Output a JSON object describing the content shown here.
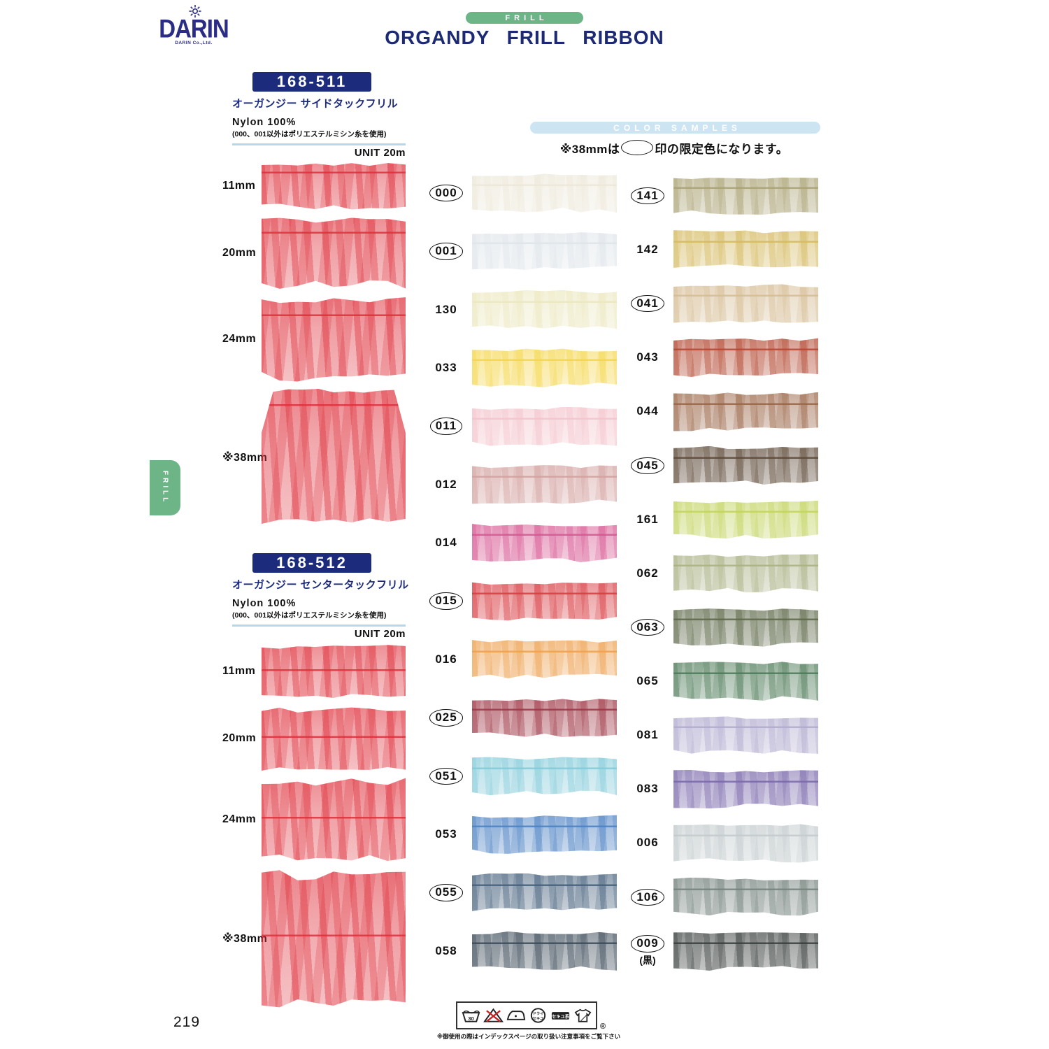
{
  "brand": {
    "name": "DARIN",
    "tagline": "DARIN Co.,Ltd."
  },
  "header": {
    "category_tab": "FRILL",
    "title": "ORGANDY FRILL RIBBON"
  },
  "side_tab_label": "FRILL",
  "products": [
    {
      "code": "168-511",
      "name": "オーガンジー サイドタックフリル",
      "material": "Nylon 100%",
      "material_note": "(000、001以外はポリエステルミシン糸を使用)",
      "unit": "UNIT 20m",
      "sizes": [
        "11mm",
        "20mm",
        "24mm",
        "※38mm"
      ],
      "sample_color": "#de2f3a"
    },
    {
      "code": "168-512",
      "name": "オーガンジー センタータックフリル",
      "material": "Nylon 100%",
      "material_note": "(000、001以外はポリエステルミシン糸を使用)",
      "unit": "UNIT 20m",
      "sizes": [
        "11mm",
        "20mm",
        "24mm",
        "※38mm"
      ],
      "sample_color": "#de2f3a"
    }
  ],
  "color_samples": {
    "heading": "COLOR  SAMPLES",
    "note_prefix": "※38mmは",
    "note_suffix": "印の限定色になります。",
    "columns": [
      {
        "rows": [
          {
            "code": "000",
            "circled": true,
            "color": "#ece7d8"
          },
          {
            "code": "001",
            "circled": true,
            "color": "#dee4e9"
          },
          {
            "code": "130",
            "circled": false,
            "color": "#ebe7bd"
          },
          {
            "code": "033",
            "circled": false,
            "color": "#f4d64a"
          },
          {
            "code": "011",
            "circled": true,
            "color": "#f3c3cb"
          },
          {
            "code": "012",
            "circled": false,
            "color": "#d2a09e"
          },
          {
            "code": "014",
            "circled": false,
            "color": "#d75490"
          },
          {
            "code": "015",
            "circled": true,
            "color": "#d83a40"
          },
          {
            "code": "016",
            "circled": false,
            "color": "#eda04e"
          },
          {
            "code": "025",
            "circled": true,
            "color": "#9d3443"
          },
          {
            "code": "051",
            "circled": true,
            "color": "#82cad9"
          },
          {
            "code": "053",
            "circled": false,
            "color": "#4a80c2"
          },
          {
            "code": "055",
            "circled": true,
            "color": "#45607c"
          },
          {
            "code": "058",
            "circled": false,
            "color": "#3b4a58"
          }
        ]
      },
      {
        "rows": [
          {
            "code": "141",
            "circled": true,
            "color": "#a9a172"
          },
          {
            "code": "142",
            "circled": false,
            "color": "#d4b95e"
          },
          {
            "code": "041",
            "circled": true,
            "color": "#d5bb91"
          },
          {
            "code": "043",
            "circled": false,
            "color": "#b2462e"
          },
          {
            "code": "044",
            "circled": false,
            "color": "#996445"
          },
          {
            "code": "045",
            "circled": true,
            "color": "#5b4735"
          },
          {
            "code": "161",
            "circled": false,
            "color": "#c2d35d"
          },
          {
            "code": "062",
            "circled": false,
            "color": "#a8b082"
          },
          {
            "code": "063",
            "circled": true,
            "color": "#5c6747"
          },
          {
            "code": "065",
            "circled": false,
            "color": "#4b7956"
          },
          {
            "code": "081",
            "circled": false,
            "color": "#b1aace"
          },
          {
            "code": "083",
            "circled": false,
            "color": "#7967aa"
          },
          {
            "code": "006",
            "circled": false,
            "color": "#c2cacc"
          },
          {
            "code": "106",
            "circled": true,
            "color": "#74827c"
          },
          {
            "code": "009",
            "circled": true,
            "color": "#383e3c",
            "note": "(黒)"
          }
        ]
      }
    ]
  },
  "footer": {
    "care_icons": [
      "handwash-30-icon",
      "no-bleach-icon",
      "iron-icon",
      "dryclean-icon",
      "petrol-tag-icon",
      "garment-icon"
    ],
    "registered_mark": "®",
    "care_note": "※御使用の際はインデックスページの取り扱い注意事項をご覧下さい",
    "page_number": "219"
  },
  "accent_colors": {
    "green": "#6db487",
    "navy": "#1d2b7c",
    "light_blue": "#cde4f2",
    "sample_red": "#de2f3a"
  }
}
